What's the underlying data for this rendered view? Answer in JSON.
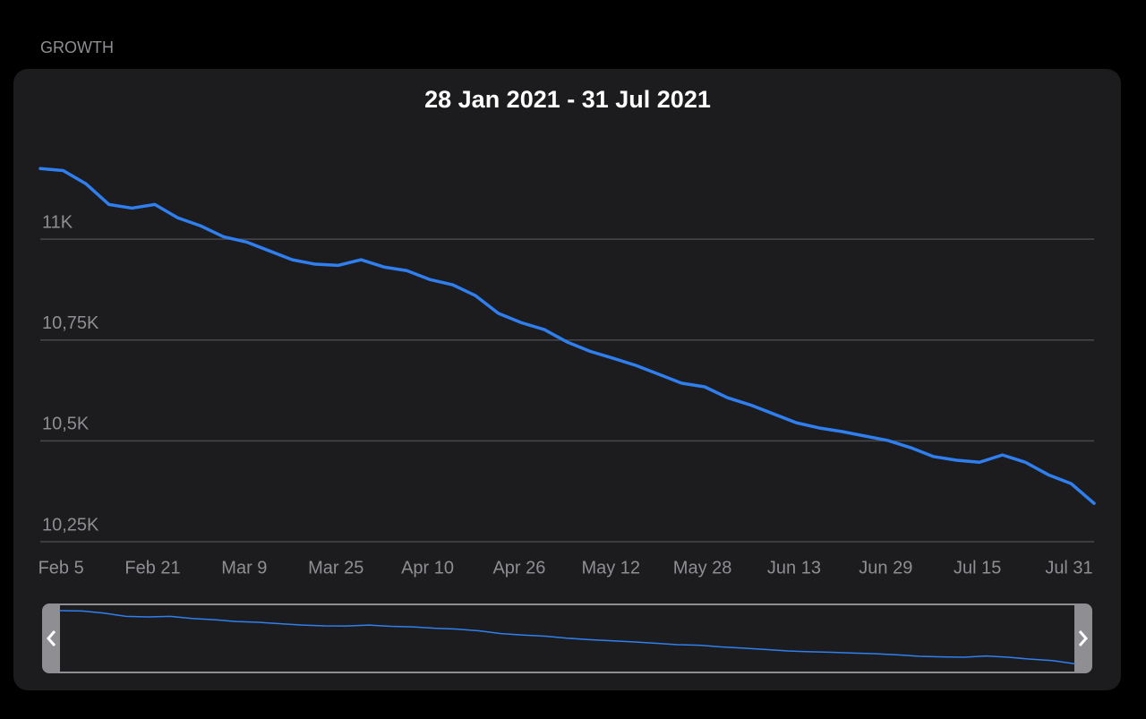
{
  "header": "GROWTH",
  "chart_data": {
    "type": "line",
    "title": "28 Jan 2021 - 31 Jul 2021",
    "categories": [
      null,
      null,
      "Feb 5",
      null,
      null,
      null,
      "Feb 21",
      null,
      null,
      null,
      "Mar 9",
      null,
      null,
      null,
      "Mar 25",
      null,
      null,
      null,
      "Apr 10",
      null,
      null,
      null,
      "Apr 26",
      null,
      null,
      null,
      "May 12",
      null,
      null,
      null,
      "May 28",
      null,
      null,
      null,
      "Jun 13",
      null,
      null,
      null,
      "Jun 29",
      null,
      null,
      null,
      "Jul 15",
      null,
      null,
      null,
      "Jul 31"
    ],
    "series": [
      {
        "color": "#2f7ff0",
        "values": [
          11175,
          11170,
          11137,
          11086,
          11077,
          11086,
          11053,
          11033,
          11006,
          10993,
          10971,
          10949,
          10938,
          10935,
          10949,
          10931,
          10922,
          10900,
          10887,
          10860,
          10816,
          10793,
          10776,
          10745,
          10722,
          10705,
          10687,
          10665,
          10643,
          10634,
          10607,
          10589,
          10567,
          10545,
          10532,
          10523,
          10512,
          10501,
          10483,
          10461,
          10452,
          10447,
          10465,
          10447,
          10416,
          10394,
          10345
        ]
      }
    ],
    "ylim": [
      10250,
      11260
    ],
    "yticks": [
      {
        "value": 10250,
        "label": "10,25K"
      },
      {
        "value": 10500,
        "label": "10,5K"
      },
      {
        "value": 10750,
        "label": "10,75K"
      },
      {
        "value": 11000,
        "label": "11K"
      }
    ],
    "grid": true
  }
}
